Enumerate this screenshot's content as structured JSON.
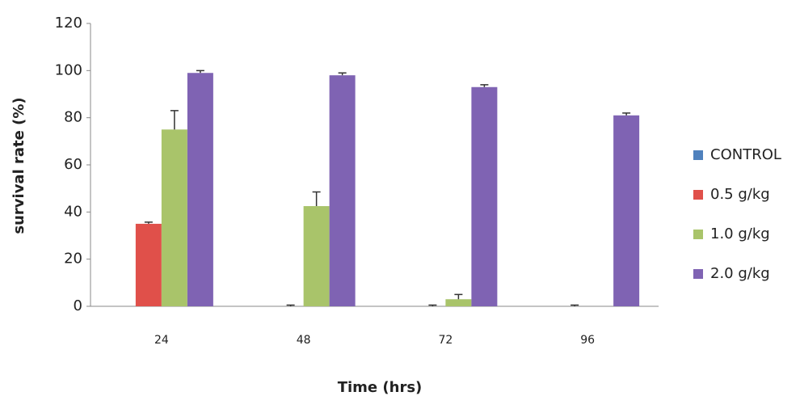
{
  "chart_data": {
    "type": "bar",
    "x_label": "Time (hrs)",
    "y_label": "survival rate (%)",
    "categories": [
      "24",
      "48",
      "72",
      "96"
    ],
    "series": [
      {
        "name": "CONTROL",
        "color": "#4f81bd",
        "values": [
          0,
          0,
          0,
          0
        ],
        "errors": [
          null,
          null,
          null,
          null
        ]
      },
      {
        "name": "0.5 g/kg",
        "color": "#e0504a",
        "values": [
          35,
          0,
          0,
          0
        ],
        "errors": [
          0.7,
          0.5,
          0.5,
          0.5
        ]
      },
      {
        "name": "1.0 g/kg",
        "color": "#a9c46a",
        "values": [
          75,
          42.5,
          3,
          0
        ],
        "errors": [
          8,
          6,
          2,
          null
        ]
      },
      {
        "name": "2.0 g/kg",
        "color": "#7f63b3",
        "values": [
          99,
          98,
          93,
          81
        ],
        "errors": [
          1,
          1,
          1,
          1
        ]
      }
    ],
    "ylim": [
      0,
      120
    ],
    "yticks": [
      0,
      20,
      40,
      60,
      80,
      100,
      120
    ],
    "grid": false,
    "legend": "right"
  }
}
